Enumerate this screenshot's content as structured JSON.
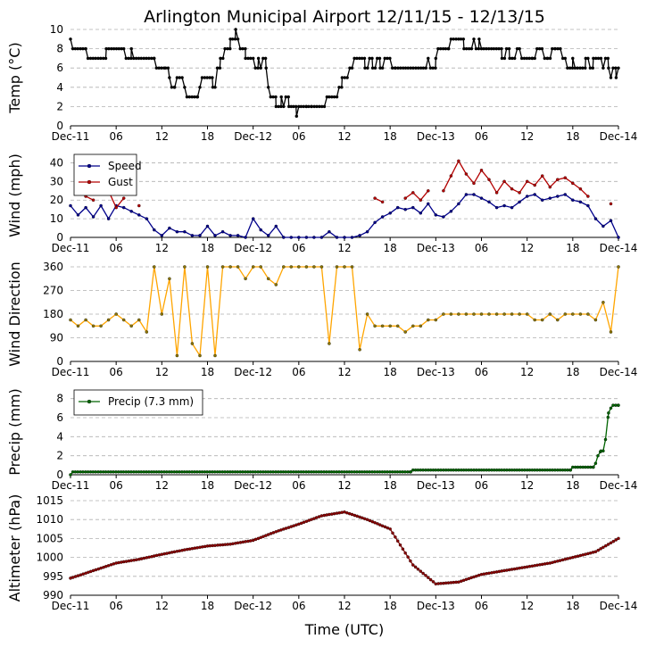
{
  "title": "Arlington Municipal Airport 12/11/15 - 12/13/15",
  "x_axis": {
    "label": "Time (UTC)",
    "range_hours": [
      0,
      72
    ],
    "tick_hours": [
      0,
      6,
      12,
      18,
      24,
      30,
      36,
      42,
      48,
      54,
      60,
      66,
      72
    ],
    "tick_labels": [
      "Dec-11",
      "06",
      "12",
      "18",
      "Dec-12",
      "06",
      "12",
      "18",
      "Dec-13",
      "06",
      "12",
      "18",
      "Dec-14"
    ]
  },
  "colors": {
    "temp": "#000000",
    "speed": "#00008b",
    "gust": "#b40000",
    "direction_line": "#ffa500",
    "direction_marker": "#8b7500",
    "precip": "#006400",
    "altimeter": "#8b0000",
    "grid": "#b0b0b0"
  },
  "chart_data": [
    {
      "name": "temperature",
      "type": "line",
      "title": "Arlington Municipal Airport 12/11/15 - 12/13/15",
      "ylabel": "Temp (°C)",
      "ylim": [
        0,
        10
      ],
      "yticks": [
        0,
        2,
        4,
        6,
        8,
        10
      ],
      "grid": true,
      "step_minutes": 20,
      "series": [
        {
          "name": "Temp",
          "color": "#000000",
          "x_hours": [
            0,
            0.3,
            2,
            2.3,
            4.3,
            4.7,
            7,
            7.3,
            8,
            8.3,
            11,
            11.3,
            12.5,
            13,
            13.3,
            13.7,
            14,
            15,
            15.3,
            16.7,
            17,
            17.3,
            18.7,
            19,
            19.3,
            19.7,
            20.3,
            21,
            21.3,
            21.7,
            22,
            22.3,
            23,
            24,
            24.3,
            24.7,
            25,
            25.3,
            25.7,
            26,
            26.3,
            27,
            27.7,
            28,
            28.3,
            28.7,
            29,
            29.3,
            29.7,
            30,
            30.3,
            31,
            31.3,
            31.7,
            33.7,
            34,
            35.3,
            35.7,
            36.7,
            37,
            37.3,
            38.3,
            38.7,
            39.3,
            39.7,
            40.3,
            40.7,
            41,
            41.3,
            42.3,
            42.7,
            47,
            47.3,
            48,
            48.3,
            49.7,
            50,
            51.3,
            51.7,
            53,
            53.3,
            53.7,
            54,
            54.3,
            56.3,
            56.7,
            57.3,
            57.7,
            58.7,
            59,
            59.3,
            60.7,
            61,
            61.3,
            62.3,
            62.7,
            63.3,
            63.7,
            64.7,
            65,
            65.3,
            66,
            66.3,
            67.7,
            68,
            68.3,
            68.7,
            70,
            70.3,
            70.7,
            71,
            71.3,
            71.7,
            72
          ],
          "values": [
            9,
            8,
            8,
            7,
            7,
            8,
            8,
            7,
            8,
            7,
            7,
            6,
            6,
            5,
            4,
            4,
            5,
            4,
            3,
            3,
            4,
            5,
            4,
            4,
            6,
            7,
            8,
            9,
            9,
            10,
            9,
            8,
            7,
            7,
            6,
            7,
            6,
            7,
            6,
            4,
            3,
            2,
            3,
            2,
            3,
            2,
            2,
            2,
            1,
            2,
            2,
            2,
            2,
            2,
            3,
            3,
            4,
            5,
            6,
            6,
            7,
            7,
            6,
            7,
            6,
            7,
            6,
            6,
            7,
            6,
            6,
            7,
            6,
            7,
            8,
            8,
            9,
            9,
            8,
            9,
            8,
            9,
            8,
            8,
            8,
            7,
            8,
            7,
            8,
            8,
            7,
            7,
            7,
            8,
            7,
            7,
            8,
            8,
            7,
            7,
            6,
            7,
            6,
            7,
            7,
            6,
            7,
            6,
            7,
            6,
            5,
            6,
            5,
            6
          ]
        }
      ]
    },
    {
      "name": "wind",
      "type": "line",
      "ylabel": "Wind (mph)",
      "ylim": [
        0,
        45
      ],
      "yticks": [
        0,
        10,
        20,
        30,
        40
      ],
      "grid": true,
      "legend": "upper-left",
      "series": [
        {
          "name": "Speed",
          "color": "#00008b",
          "x_hours": [
            0,
            1,
            2,
            3,
            4,
            5,
            6,
            7,
            8,
            9,
            10,
            11,
            12,
            13,
            14,
            15,
            16,
            17,
            18,
            19,
            20,
            21,
            22,
            23,
            24,
            25,
            26,
            27,
            28,
            29,
            30,
            31,
            32,
            33,
            34,
            35,
            36,
            37,
            38,
            39,
            40,
            41,
            42,
            43,
            44,
            45,
            46,
            47,
            48,
            49,
            50,
            51,
            52,
            53,
            54,
            55,
            56,
            57,
            58,
            59,
            60,
            61,
            62,
            63,
            64,
            65,
            66,
            67,
            68,
            69,
            70,
            71,
            72
          ],
          "values": [
            17,
            12,
            16,
            11,
            17,
            10,
            17,
            16,
            14,
            12,
            10,
            4,
            1,
            5,
            3,
            3,
            1,
            1,
            6,
            1,
            3,
            1,
            1,
            0,
            10,
            4,
            1,
            6,
            0,
            0,
            0,
            0,
            0,
            0,
            3,
            0,
            0,
            0,
            1,
            3,
            8,
            11,
            13,
            16,
            15,
            16,
            13,
            18,
            12,
            11,
            14,
            18,
            23,
            23,
            21,
            19,
            16,
            17,
            16,
            19,
            22,
            23,
            20,
            21,
            22,
            23,
            20,
            19,
            17,
            10,
            6,
            9,
            0
          ]
        },
        {
          "name": "Gust",
          "color": "#b40000",
          "x_hours": [
            1,
            2,
            3,
            5,
            6,
            7,
            9,
            40,
            41,
            44,
            45,
            46,
            47,
            49,
            50,
            51,
            52,
            53,
            54,
            55,
            56,
            57,
            58,
            59,
            60,
            61,
            62,
            63,
            64,
            65,
            66,
            67,
            68,
            71
          ],
          "values": [
            25,
            22,
            20,
            25,
            16,
            21,
            17,
            21,
            19,
            21,
            24,
            20,
            25,
            25,
            33,
            41,
            34,
            29,
            36,
            31,
            24,
            30,
            26,
            24,
            30,
            28,
            33,
            27,
            31,
            32,
            29,
            26,
            22,
            18
          ]
        }
      ]
    },
    {
      "name": "wind-direction",
      "type": "line",
      "ylabel": "Wind Direction",
      "ylim": [
        0,
        360
      ],
      "yticks": [
        0,
        90,
        180,
        270,
        360
      ],
      "grid": true,
      "series": [
        {
          "name": "Direction",
          "color": "#ffa500",
          "x_hours": [
            0,
            1,
            2,
            3,
            4,
            5,
            6,
            7,
            8,
            9,
            10,
            11,
            12,
            13,
            14,
            15,
            16,
            17,
            18,
            19,
            20,
            21,
            22,
            23,
            24,
            25,
            26,
            27,
            28,
            29,
            30,
            31,
            32,
            33,
            34,
            35,
            36,
            37,
            38,
            39,
            40,
            41,
            42,
            43,
            44,
            45,
            46,
            47,
            48,
            49,
            50,
            51,
            52,
            53,
            54,
            55,
            56,
            57,
            58,
            59,
            60,
            61,
            62,
            63,
            64,
            65,
            66,
            67,
            68,
            69,
            70,
            71,
            72
          ],
          "values": [
            158,
            135,
            158,
            135,
            135,
            158,
            180,
            158,
            135,
            158,
            112,
            360,
            180,
            315,
            22,
            360,
            68,
            22,
            360,
            22,
            360,
            360,
            360,
            315,
            360,
            360,
            315,
            292,
            360,
            360,
            360,
            360,
            360,
            360,
            68,
            360,
            360,
            360,
            45,
            180,
            135,
            135,
            135,
            135,
            112,
            135,
            135,
            158,
            158,
            180,
            180,
            180,
            180,
            180,
            180,
            180,
            180,
            180,
            180,
            180,
            180,
            158,
            158,
            180,
            158,
            180,
            180,
            180,
            180,
            158,
            225,
            112,
            360
          ]
        }
      ]
    },
    {
      "name": "precipitation",
      "type": "line",
      "ylabel": "Precip (mm)",
      "ylim": [
        0,
        9
      ],
      "yticks": [
        0,
        2,
        4,
        6,
        8
      ],
      "grid": true,
      "legend": "upper-left",
      "series": [
        {
          "name": "Precip (7.3 mm)",
          "color": "#006400",
          "x_hours": [
            0,
            0.3,
            44.7,
            45,
            65.7,
            66,
            68.7,
            69,
            69.3,
            69.7,
            70,
            70.3,
            70.7,
            71,
            71.3,
            72
          ],
          "values": [
            0,
            0.3,
            0.3,
            0.5,
            0.5,
            0.8,
            0.8,
            1.2,
            2.0,
            2.5,
            2.5,
            3.7,
            6.5,
            7.0,
            7.3,
            7.3
          ]
        }
      ]
    },
    {
      "name": "altimeter",
      "type": "line",
      "ylabel": "Altimeter (hPa)",
      "xlabel": "Time (UTC)",
      "ylim": [
        990,
        1015
      ],
      "yticks": [
        990,
        995,
        1000,
        1005,
        1010,
        1015
      ],
      "grid": true,
      "series": [
        {
          "name": "Altimeter",
          "color": "#8b0000",
          "x_hours": [
            0,
            3,
            6,
            9,
            12,
            15,
            18,
            21,
            24,
            27,
            30,
            33,
            36,
            39,
            42,
            45,
            48,
            51,
            54,
            57,
            60,
            63,
            66,
            69,
            72
          ],
          "values": [
            994.5,
            996.5,
            998.5,
            999.5,
            1000.8,
            1002,
            1003,
            1003.5,
            1004.5,
            1006.8,
            1008.8,
            1011,
            1012,
            1010,
            1007.5,
            998,
            993,
            993.5,
            995.5,
            996.5,
            997.5,
            998.5,
            1000,
            1001.5,
            1005
          ]
        }
      ]
    }
  ]
}
